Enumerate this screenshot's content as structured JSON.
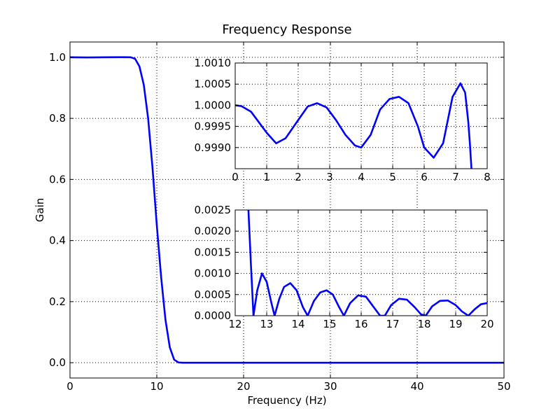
{
  "colors": {
    "series": "#0000ff",
    "background": "#ffffff",
    "axes": "#000000"
  },
  "chart_data": [
    {
      "type": "line",
      "title": "Frequency Response",
      "xlabel": "Frequency (Hz)",
      "ylabel": "Gain",
      "xlim": [
        0,
        50
      ],
      "ylim": [
        -0.05,
        1.05
      ],
      "grid": true,
      "xticks": [
        0,
        10,
        20,
        30,
        40,
        50
      ],
      "xtick_labels": [
        "0",
        "10",
        "20",
        "30",
        "40",
        "50"
      ],
      "yticks": [
        0.0,
        0.2,
        0.4,
        0.6,
        0.8,
        1.0
      ],
      "ytick_labels": [
        "0.0",
        "0.2",
        "0.4",
        "0.6",
        "0.8",
        "1.0"
      ],
      "series": [
        {
          "x": [
            0,
            2,
            4,
            6,
            7,
            7.5,
            8,
            8.5,
            9,
            9.5,
            10,
            10.5,
            11,
            11.5,
            12,
            12.5,
            13,
            15,
            20,
            30,
            40,
            50
          ],
          "y": [
            1.0,
            0.9995,
            1.0,
            1.0002,
            1.0,
            0.995,
            0.97,
            0.91,
            0.8,
            0.64,
            0.45,
            0.28,
            0.14,
            0.05,
            0.01,
            0.001,
            0.0,
            0.0,
            0.0,
            0.0,
            0.0,
            0.0
          ]
        }
      ]
    },
    {
      "type": "line",
      "title": "",
      "xlabel": "",
      "ylabel": "",
      "xlim": [
        0,
        8
      ],
      "ylim": [
        0.9985,
        1.001
      ],
      "grid": true,
      "xticks": [
        0,
        1,
        2,
        3,
        4,
        5,
        6,
        7,
        8
      ],
      "xtick_labels": [
        "0",
        "1",
        "2",
        "3",
        "4",
        "5",
        "6",
        "7",
        "8"
      ],
      "yticks": [
        0.999,
        0.9995,
        1.0,
        1.0005,
        1.001
      ],
      "ytick_labels": [
        "0.9990",
        "0.9995",
        "1.0000",
        "1.0005",
        "1.0010"
      ],
      "series": [
        {
          "x": [
            0,
            0.2,
            0.5,
            0.8,
            1.0,
            1.3,
            1.6,
            2.0,
            2.3,
            2.6,
            2.9,
            3.2,
            3.5,
            3.8,
            4.0,
            4.3,
            4.6,
            4.9,
            5.2,
            5.5,
            5.8,
            6.0,
            6.3,
            6.6,
            6.9,
            7.15,
            7.3,
            7.4,
            7.45,
            7.5
          ],
          "y": [
            1.0,
            0.99998,
            0.99985,
            0.99955,
            0.99935,
            0.9991,
            0.99922,
            0.99965,
            0.99997,
            1.00005,
            0.99995,
            0.99965,
            0.9993,
            0.99905,
            0.999,
            0.9993,
            0.9999,
            1.00015,
            1.0002,
            1.00005,
            0.9995,
            0.999,
            0.99876,
            0.9991,
            1.0002,
            1.00052,
            1.0003,
            0.9996,
            0.9991,
            0.9985
          ]
        }
      ]
    },
    {
      "type": "line",
      "title": "",
      "xlabel": "",
      "ylabel": "",
      "xlim": [
        12,
        20
      ],
      "ylim": [
        0,
        0.0025
      ],
      "grid": true,
      "xticks": [
        12,
        13,
        14,
        15,
        16,
        17,
        18,
        19,
        20
      ],
      "xtick_labels": [
        "12",
        "13",
        "14",
        "15",
        "16",
        "17",
        "18",
        "19",
        "20"
      ],
      "yticks": [
        0,
        0.0005,
        0.001,
        0.0015,
        0.002,
        0.0025
      ],
      "ytick_labels": [
        "0.0000",
        "0.0005",
        "0.0010",
        "0.0015",
        "0.0020",
        "0.0025"
      ],
      "series": [
        {
          "x": [
            12.42,
            12.5,
            12.58,
            12.7,
            12.85,
            13.0,
            13.15,
            13.25,
            13.4,
            13.55,
            13.75,
            13.95,
            14.15,
            14.3,
            14.5,
            14.7,
            14.9,
            15.1,
            15.3,
            15.45,
            15.65,
            15.9,
            16.15,
            16.4,
            16.6,
            16.75,
            16.95,
            17.2,
            17.45,
            17.7,
            17.9,
            18.05,
            18.25,
            18.5,
            18.75,
            19.0,
            19.2,
            19.4,
            19.6,
            19.8,
            20.0
          ],
          "y": [
            0.0025,
            0.0012,
            0.0,
            0.0006,
            0.001,
            0.0008,
            0.0003,
            0.0,
            0.0004,
            0.00068,
            0.00077,
            0.0006,
            0.0002,
            0.0,
            0.00035,
            0.00055,
            0.0006,
            0.0005,
            0.0002,
            0.0,
            0.0003,
            0.00048,
            0.00045,
            0.0002,
            0.0,
            0.0,
            0.00025,
            0.0004,
            0.00038,
            0.0002,
            3e-05,
            0.0,
            0.00022,
            0.00035,
            0.00036,
            0.00025,
            0.0001,
            0.0,
            0.00015,
            0.00027,
            0.0003
          ]
        }
      ]
    }
  ]
}
